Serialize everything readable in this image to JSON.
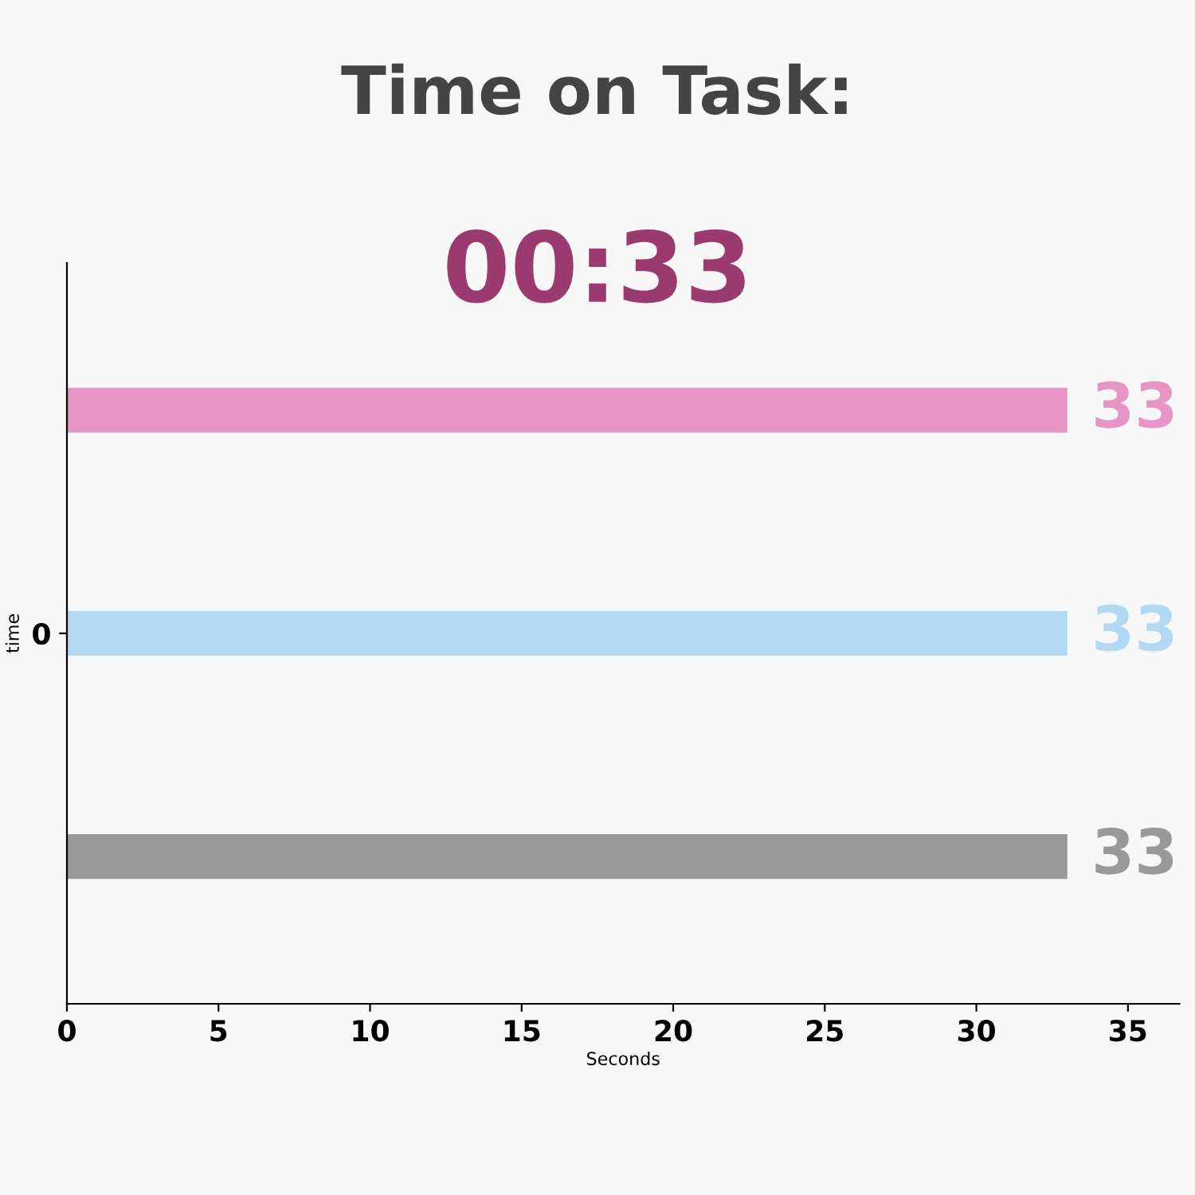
{
  "chart_data": {
    "type": "bar",
    "orientation": "horizontal",
    "title": "Time on Task:",
    "subtitle": "00:33",
    "xlabel": "Seconds",
    "ylabel": "time",
    "categories": [
      null,
      "0",
      null
    ],
    "values": [
      33,
      33,
      33
    ],
    "colors": [
      "#e795c5",
      "#b3d9f2",
      "#999999"
    ],
    "xlim": [
      0,
      36.7
    ],
    "xticks": [
      0,
      5,
      10,
      15,
      20,
      25,
      30,
      35
    ],
    "data_labels": true,
    "grid": false,
    "legend": false
  }
}
